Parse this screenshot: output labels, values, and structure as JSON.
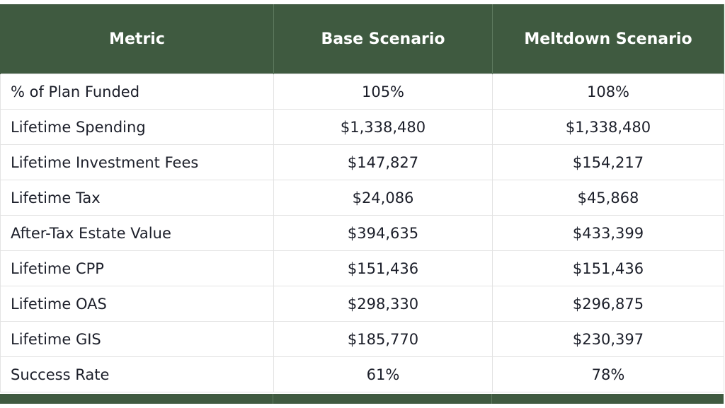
{
  "table": {
    "headers": [
      "Metric",
      "Base Scenario",
      "Meltdown Scenario"
    ],
    "rows": [
      {
        "metric": "% of Plan Funded",
        "base": "105%",
        "meltdown": "108%"
      },
      {
        "metric": "Lifetime Spending",
        "base": "$1,338,480",
        "meltdown": "$1,338,480"
      },
      {
        "metric": "Lifetime Investment Fees",
        "base": "$147,827",
        "meltdown": "$154,217"
      },
      {
        "metric": "Lifetime Tax",
        "base": "$24,086",
        "meltdown": "$45,868"
      },
      {
        "metric": "After-Tax Estate Value",
        "base": "$394,635",
        "meltdown": "$433,399"
      },
      {
        "metric": "Lifetime CPP",
        "base": "$151,436",
        "meltdown": "$151,436"
      },
      {
        "metric": "Lifetime OAS",
        "base": "$298,330",
        "meltdown": "$296,875"
      },
      {
        "metric": "Lifetime GIS",
        "base": "$185,770",
        "meltdown": "$230,397"
      },
      {
        "metric": "Success Rate",
        "base": "61%",
        "meltdown": "78%"
      }
    ]
  },
  "colors": {
    "header_bg": "#3f5a40",
    "header_text": "#ffffff",
    "body_text": "#1c1f2a",
    "grid": "#e3e3e3"
  }
}
